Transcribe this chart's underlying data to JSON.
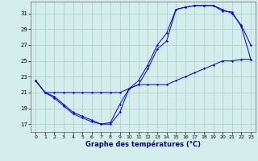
{
  "xlabel": "Graphe des températures (°C)",
  "xlim": [
    -0.5,
    23.5
  ],
  "ylim": [
    16.0,
    32.5
  ],
  "yticks": [
    17,
    19,
    21,
    23,
    25,
    27,
    29,
    31
  ],
  "xticks": [
    0,
    1,
    2,
    3,
    4,
    5,
    6,
    7,
    8,
    9,
    10,
    11,
    12,
    13,
    14,
    15,
    16,
    17,
    18,
    19,
    20,
    21,
    22,
    23
  ],
  "background_color": "#d4eeee",
  "grid_color": "#aacccc",
  "line_color": "#0000cc",
  "line1_x": [
    0,
    1,
    2,
    3,
    4,
    5,
    6,
    7,
    8,
    9,
    10,
    11,
    12,
    13,
    14,
    15,
    16,
    17,
    18,
    19,
    20,
    21,
    22,
    23
  ],
  "line1_y": [
    22.5,
    21.0,
    21.0,
    21.0,
    21.0,
    21.0,
    21.0,
    21.0,
    21.0,
    21.0,
    21.5,
    22.0,
    22.0,
    22.0,
    22.0,
    22.5,
    23.0,
    23.5,
    24.0,
    24.5,
    25.0,
    25.0,
    25.2,
    25.2
  ],
  "line2_x": [
    0,
    1,
    2,
    3,
    4,
    5,
    6,
    7,
    8,
    9,
    10,
    11,
    12,
    13,
    14,
    15,
    16,
    17,
    18,
    19,
    20,
    21,
    22,
    23
  ],
  "line2_y": [
    22.5,
    21.0,
    20.5,
    19.5,
    18.5,
    18.0,
    17.5,
    17.0,
    17.2,
    19.5,
    21.5,
    22.0,
    24.0,
    26.5,
    27.5,
    31.5,
    31.8,
    32.0,
    32.0,
    32.0,
    31.5,
    31.0,
    29.5,
    27.0
  ],
  "line3_x": [
    0,
    1,
    2,
    3,
    4,
    5,
    6,
    7,
    8,
    9,
    10,
    11,
    12,
    13,
    14,
    15,
    16,
    17,
    18,
    19,
    20,
    21,
    22,
    23
  ],
  "line3_y": [
    22.5,
    21.0,
    20.3,
    19.3,
    18.3,
    17.8,
    17.3,
    17.0,
    17.0,
    18.5,
    21.5,
    22.5,
    24.5,
    27.0,
    28.5,
    31.5,
    31.8,
    32.0,
    32.0,
    32.0,
    31.3,
    31.2,
    29.3,
    25.2
  ]
}
